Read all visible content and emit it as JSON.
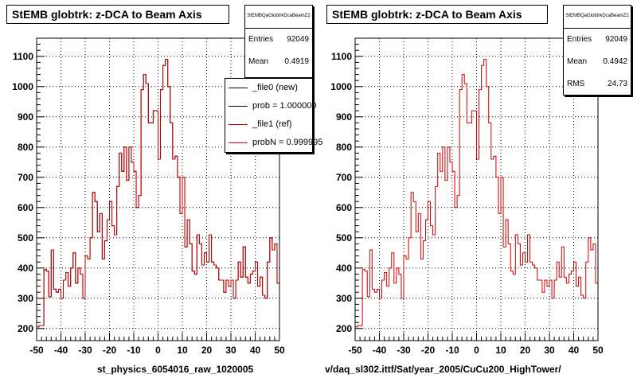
{
  "panels": [
    {
      "title": "StEMB globtrk: z-DCA to Beam Axis",
      "stats": {
        "name": "StEMBQaGlobtrkDcaBeamZ2",
        "rows": [
          {
            "label": "Entries",
            "value": "92049"
          },
          {
            "label": "Mean",
            "value": "0.4919"
          }
        ]
      },
      "legend": [
        {
          "label": "_file0 (new)",
          "color": "#000000"
        },
        {
          "label": "prob = 1.000000",
          "color": "#000000"
        },
        {
          "label": "_file1 (ref)",
          "color": "#cc0000"
        },
        {
          "label": "probN = 0.999995",
          "color": "#cc0000"
        }
      ],
      "xtitle": "st_physics_6054016_raw_1020005"
    },
    {
      "title": "StEMB globtrk: z-DCA to Beam Axis",
      "stats": {
        "name": "StEMBQaGlobtrkDcaBeamZ2",
        "rows": [
          {
            "label": "Entries",
            "value": "92049"
          },
          {
            "label": "Mean",
            "value": "0.4942"
          },
          {
            "label": "RMS",
            "value": "24.73"
          }
        ]
      },
      "legend": [],
      "xtitle": "v/daq_sl302.ittf/Sat/year_2005/CuCu200_HighTower/"
    }
  ],
  "chart_data": [
    {
      "type": "histogram",
      "title": "StEMB globtrk: z-DCA to Beam Axis",
      "xlabel": "st_physics_6054016_raw_1020005",
      "xlim": [
        -50,
        50
      ],
      "ylim": [
        160,
        1160
      ],
      "xticks": [
        -50,
        -40,
        -30,
        -20,
        -10,
        0,
        10,
        20,
        30,
        40,
        50
      ],
      "yticks": [
        200,
        300,
        400,
        500,
        600,
        700,
        800,
        900,
        1000,
        1100
      ],
      "grid": true,
      "bin_edges": [
        -50,
        50
      ],
      "series": [
        {
          "name": "_file0 (new)",
          "color": "#000000",
          "values": [
            205,
            210,
            210,
            395,
            390,
            305,
            460,
            330,
            320,
            330,
            300,
            360,
            385,
            340,
            400,
            450,
            350,
            400,
            380,
            300,
            440,
            430,
            500,
            650,
            620,
            520,
            580,
            430,
            490,
            560,
            620,
            540,
            510,
            670,
            780,
            720,
            800,
            690,
            800,
            750,
            720,
            600,
            640,
            990,
            1040,
            1010,
            880,
            880,
            920,
            920,
            760,
            990,
            1070,
            1090,
            1000,
            880,
            760,
            770,
            700,
            580,
            700,
            470,
            560,
            480,
            390,
            380,
            510,
            480,
            410,
            450,
            420,
            510,
            420,
            410,
            400,
            360,
            360,
            320,
            360,
            340,
            360,
            300,
            360,
            420,
            370,
            470,
            370,
            350,
            380,
            390,
            420,
            340,
            370,
            310,
            300,
            420,
            500,
            460,
            480,
            350
          ]
        },
        {
          "name": "_file1 (ref)",
          "color": "#cc0000",
          "values": [
            205,
            210,
            210,
            395,
            390,
            305,
            460,
            330,
            320,
            330,
            300,
            360,
            385,
            340,
            400,
            450,
            350,
            400,
            380,
            300,
            440,
            430,
            500,
            650,
            620,
            520,
            580,
            430,
            490,
            560,
            620,
            540,
            510,
            670,
            780,
            720,
            800,
            690,
            800,
            750,
            720,
            600,
            640,
            990,
            1040,
            1010,
            880,
            880,
            920,
            920,
            760,
            990,
            1070,
            1090,
            1000,
            880,
            760,
            770,
            700,
            580,
            700,
            470,
            560,
            480,
            390,
            380,
            510,
            480,
            410,
            450,
            420,
            510,
            420,
            410,
            400,
            360,
            360,
            320,
            360,
            340,
            360,
            300,
            360,
            420,
            370,
            470,
            370,
            350,
            380,
            390,
            420,
            340,
            370,
            310,
            300,
            420,
            500,
            460,
            480,
            350
          ]
        }
      ]
    },
    {
      "type": "histogram",
      "title": "StEMB globtrk: z-DCA to Beam Axis",
      "xlabel": "v/daq_sl302.ittf/Sat/year_2005/CuCu200_HighTower/",
      "xlim": [
        -50,
        50
      ],
      "ylim": [
        160,
        1160
      ],
      "xticks": [
        -50,
        -40,
        -30,
        -20,
        -10,
        0,
        10,
        20,
        30,
        40,
        50
      ],
      "yticks": [
        200,
        300,
        400,
        500,
        600,
        700,
        800,
        900,
        1000,
        1100
      ],
      "grid": true,
      "bin_edges": [
        -50,
        50
      ],
      "series": [
        {
          "name": "",
          "color": "#cc0000",
          "values": [
            205,
            210,
            210,
            395,
            390,
            305,
            460,
            330,
            320,
            330,
            300,
            360,
            385,
            340,
            400,
            450,
            350,
            400,
            380,
            300,
            440,
            430,
            500,
            650,
            620,
            520,
            580,
            430,
            490,
            560,
            620,
            540,
            510,
            670,
            780,
            720,
            800,
            690,
            800,
            750,
            720,
            600,
            640,
            990,
            1040,
            1010,
            880,
            880,
            920,
            920,
            760,
            990,
            1070,
            1090,
            1000,
            880,
            760,
            770,
            700,
            580,
            700,
            470,
            560,
            480,
            390,
            380,
            510,
            480,
            410,
            450,
            420,
            510,
            420,
            410,
            400,
            360,
            360,
            320,
            360,
            340,
            360,
            300,
            360,
            420,
            370,
            470,
            370,
            350,
            380,
            390,
            420,
            340,
            370,
            310,
            300,
            420,
            500,
            460,
            480,
            350
          ]
        }
      ]
    }
  ]
}
